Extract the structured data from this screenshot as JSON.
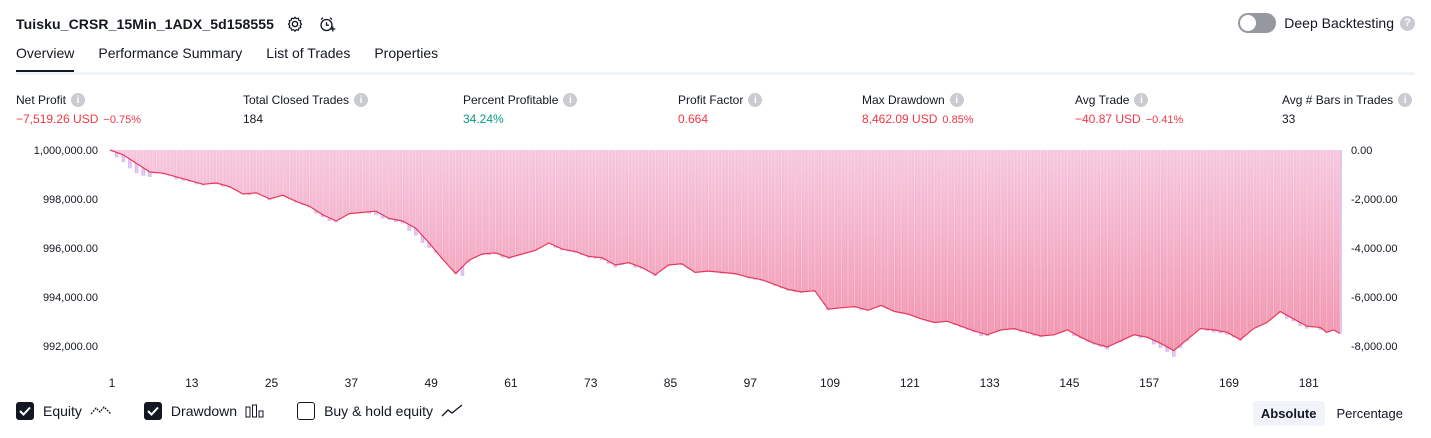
{
  "header": {
    "strategy_title": "Tuisku_CRSR_15Min_1ADX_5d158555",
    "settings_icon": "gear-icon",
    "alert_icon": "add-alert-icon",
    "deep_backtesting_label": "Deep Backtesting",
    "deep_backtesting_enabled": false
  },
  "tabs": [
    {
      "label": "Overview",
      "active": true
    },
    {
      "label": "Performance Summary",
      "active": false
    },
    {
      "label": "List of Trades",
      "active": false
    },
    {
      "label": "Properties",
      "active": false
    }
  ],
  "stats": {
    "net_profit": {
      "label": "Net Profit",
      "value": "−7,519.26 USD",
      "pct": "−0.75%"
    },
    "total_closed_trades": {
      "label": "Total Closed Trades",
      "value": "184"
    },
    "percent_profitable": {
      "label": "Percent Profitable",
      "value": "34.24%"
    },
    "profit_factor": {
      "label": "Profit Factor",
      "value": "0.664"
    },
    "max_drawdown": {
      "label": "Max Drawdown",
      "value": "8,462.09 USD",
      "pct": "0.85%"
    },
    "avg_trade": {
      "label": "Avg Trade",
      "value": "−40.87 USD",
      "pct": "−0.41%"
    },
    "avg_bars": {
      "label": "Avg # Bars in Trades",
      "value": "33"
    }
  },
  "colors": {
    "negative": "#f23645",
    "positive": "#089981",
    "equity_line": "#e8375a",
    "equity_fill_top": "#f7c6dc",
    "equity_fill_bottom": "#f28ca6",
    "drawdown_bar": "#d9b8f3"
  },
  "chart_data": {
    "type": "area",
    "left_axis": {
      "ticks": [
        "1,000,000.00",
        "998,000.00",
        "996,000.00",
        "994,000.00",
        "992,000.00"
      ],
      "ylim": [
        991500,
        1000000
      ]
    },
    "right_axis": {
      "ticks": [
        "0.00",
        "-2,000.00",
        "-4,000.00",
        "-6,000.00",
        "-8,000.00"
      ],
      "ylim": [
        -8500,
        0
      ]
    },
    "x_ticks": [
      "1",
      "13",
      "25",
      "37",
      "49",
      "61",
      "73",
      "85",
      "97",
      "109",
      "121",
      "133",
      "145",
      "157",
      "169",
      "181"
    ],
    "x_range": [
      1,
      186
    ],
    "equity_points": [
      [
        1,
        1000000
      ],
      [
        3,
        999800
      ],
      [
        5,
        999450
      ],
      [
        7,
        999100
      ],
      [
        9,
        999050
      ],
      [
        11,
        998900
      ],
      [
        13,
        998750
      ],
      [
        15,
        998600
      ],
      [
        17,
        998650
      ],
      [
        19,
        998500
      ],
      [
        21,
        998200
      ],
      [
        23,
        998250
      ],
      [
        25,
        998000
      ],
      [
        27,
        998150
      ],
      [
        29,
        997900
      ],
      [
        31,
        997700
      ],
      [
        33,
        997350
      ],
      [
        35,
        997100
      ],
      [
        37,
        997400
      ],
      [
        39,
        997450
      ],
      [
        41,
        997500
      ],
      [
        43,
        997200
      ],
      [
        45,
        997100
      ],
      [
        47,
        996800
      ],
      [
        49,
        996200
      ],
      [
        51,
        995550
      ],
      [
        53,
        994950
      ],
      [
        55,
        995500
      ],
      [
        57,
        995750
      ],
      [
        59,
        995800
      ],
      [
        61,
        995600
      ],
      [
        63,
        995750
      ],
      [
        65,
        995900
      ],
      [
        67,
        996200
      ],
      [
        69,
        995950
      ],
      [
        71,
        995850
      ],
      [
        73,
        995650
      ],
      [
        75,
        995600
      ],
      [
        77,
        995300
      ],
      [
        79,
        995400
      ],
      [
        81,
        995200
      ],
      [
        83,
        994900
      ],
      [
        85,
        995300
      ],
      [
        87,
        995350
      ],
      [
        89,
        995000
      ],
      [
        91,
        995050
      ],
      [
        93,
        995000
      ],
      [
        95,
        994950
      ],
      [
        97,
        994800
      ],
      [
        99,
        994700
      ],
      [
        101,
        994500
      ],
      [
        103,
        994300
      ],
      [
        105,
        994200
      ],
      [
        107,
        994250
      ],
      [
        109,
        993500
      ],
      [
        111,
        993550
      ],
      [
        113,
        993600
      ],
      [
        115,
        993450
      ],
      [
        117,
        993650
      ],
      [
        119,
        993400
      ],
      [
        121,
        993300
      ],
      [
        123,
        993100
      ],
      [
        125,
        992950
      ],
      [
        127,
        993000
      ],
      [
        129,
        992800
      ],
      [
        131,
        992600
      ],
      [
        133,
        992450
      ],
      [
        135,
        992650
      ],
      [
        137,
        992700
      ],
      [
        139,
        992550
      ],
      [
        141,
        992400
      ],
      [
        143,
        992450
      ],
      [
        145,
        992650
      ],
      [
        147,
        992350
      ],
      [
        149,
        992100
      ],
      [
        151,
        991950
      ],
      [
        153,
        992200
      ],
      [
        155,
        992450
      ],
      [
        157,
        992350
      ],
      [
        159,
        992100
      ],
      [
        161,
        991800
      ],
      [
        163,
        992250
      ],
      [
        165,
        992700
      ],
      [
        167,
        992650
      ],
      [
        169,
        992550
      ],
      [
        171,
        992250
      ],
      [
        173,
        992700
      ],
      [
        175,
        992950
      ],
      [
        177,
        993400
      ],
      [
        179,
        993100
      ],
      [
        181,
        992800
      ],
      [
        183,
        992750
      ],
      [
        184,
        992550
      ],
      [
        185,
        992650
      ],
      [
        186,
        992500
      ]
    ],
    "drawdown_peak_bars": [
      [
        1,
        0
      ],
      [
        2,
        -300
      ],
      [
        3,
        -500
      ],
      [
        4,
        -750
      ],
      [
        5,
        -950
      ],
      [
        6,
        -1050
      ],
      [
        7,
        -1100
      ],
      [
        8,
        -950
      ],
      [
        9,
        -1000
      ],
      [
        10,
        -1050
      ],
      [
        11,
        -1200
      ],
      [
        12,
        -1250
      ],
      [
        13,
        -1300
      ],
      [
        14,
        -1400
      ],
      [
        15,
        -1450
      ],
      [
        16,
        -1350
      ],
      [
        17,
        -1400
      ],
      [
        18,
        -1500
      ],
      [
        19,
        -1550
      ],
      [
        20,
        -1600
      ],
      [
        21,
        -1800
      ],
      [
        22,
        -1850
      ],
      [
        23,
        -1750
      ],
      [
        24,
        -1800
      ],
      [
        25,
        -2050
      ],
      [
        26,
        -1900
      ],
      [
        27,
        -1850
      ],
      [
        28,
        -2000
      ],
      [
        29,
        -2150
      ],
      [
        30,
        -2250
      ],
      [
        31,
        -2350
      ],
      [
        32,
        -2600
      ],
      [
        33,
        -2750
      ],
      [
        34,
        -2900
      ],
      [
        35,
        -2950
      ],
      [
        36,
        -2650
      ],
      [
        37,
        -2550
      ],
      [
        38,
        -2550
      ],
      [
        39,
        -2500
      ],
      [
        40,
        -2600
      ],
      [
        41,
        -2650
      ],
      [
        42,
        -2800
      ],
      [
        43,
        -2850
      ],
      [
        44,
        -2950
      ],
      [
        45,
        -3000
      ],
      [
        46,
        -3300
      ],
      [
        47,
        -3500
      ],
      [
        48,
        -3800
      ],
      [
        49,
        -4000
      ],
      [
        50,
        -4200
      ],
      [
        51,
        -4450
      ],
      [
        52,
        -4700
      ],
      [
        53,
        -5050
      ],
      [
        54,
        -5150
      ],
      [
        55,
        -4600
      ],
      [
        56,
        -4400
      ],
      [
        57,
        -4300
      ],
      [
        58,
        -4300
      ],
      [
        59,
        -4250
      ],
      [
        60,
        -4400
      ],
      [
        61,
        -4450
      ],
      [
        62,
        -4300
      ],
      [
        63,
        -4250
      ],
      [
        64,
        -4100
      ],
      [
        65,
        -4050
      ],
      [
        66,
        -3900
      ],
      [
        67,
        -3800
      ],
      [
        68,
        -4000
      ],
      [
        69,
        -4100
      ],
      [
        70,
        -4150
      ],
      [
        71,
        -4200
      ],
      [
        72,
        -4300
      ],
      [
        73,
        -4400
      ],
      [
        74,
        -4450
      ],
      [
        75,
        -4500
      ],
      [
        76,
        -4650
      ],
      [
        77,
        -4800
      ],
      [
        78,
        -4700
      ],
      [
        79,
        -4650
      ],
      [
        80,
        -4800
      ],
      [
        81,
        -4850
      ],
      [
        82,
        -4950
      ],
      [
        83,
        -5150
      ],
      [
        84,
        -4900
      ],
      [
        85,
        -4750
      ],
      [
        86,
        -4700
      ],
      [
        87,
        -4700
      ],
      [
        88,
        -4850
      ],
      [
        89,
        -5000
      ],
      [
        90,
        -4950
      ],
      [
        91,
        -4950
      ],
      [
        92,
        -5000
      ],
      [
        93,
        -5050
      ],
      [
        94,
        -5050
      ],
      [
        95,
        -5100
      ],
      [
        96,
        -5150
      ],
      [
        97,
        -5250
      ],
      [
        98,
        -5300
      ],
      [
        99,
        -5350
      ],
      [
        100,
        -5400
      ],
      [
        101,
        -5550
      ],
      [
        102,
        -5650
      ],
      [
        103,
        -5750
      ],
      [
        104,
        -5800
      ],
      [
        105,
        -5850
      ],
      [
        106,
        -5750
      ],
      [
        107,
        -5800
      ],
      [
        108,
        -6100
      ],
      [
        109,
        -6550
      ],
      [
        110,
        -6500
      ],
      [
        111,
        -6450
      ],
      [
        112,
        -6400
      ],
      [
        113,
        -6450
      ],
      [
        114,
        -6550
      ],
      [
        115,
        -6550
      ],
      [
        116,
        -6400
      ],
      [
        117,
        -6350
      ],
      [
        118,
        -6500
      ],
      [
        119,
        -6600
      ],
      [
        120,
        -6650
      ],
      [
        121,
        -6700
      ],
      [
        122,
        -6800
      ],
      [
        123,
        -6900
      ],
      [
        124,
        -7000
      ],
      [
        125,
        -7050
      ],
      [
        126,
        -7000
      ],
      [
        127,
        -7000
      ],
      [
        128,
        -7150
      ],
      [
        129,
        -7250
      ],
      [
        130,
        -7350
      ],
      [
        131,
        -7450
      ],
      [
        132,
        -7600
      ],
      [
        133,
        -7600
      ],
      [
        134,
        -7400
      ],
      [
        135,
        -7350
      ],
      [
        136,
        -7300
      ],
      [
        137,
        -7350
      ],
      [
        138,
        -7450
      ],
      [
        139,
        -7500
      ],
      [
        140,
        -7600
      ],
      [
        141,
        -7650
      ],
      [
        142,
        -7550
      ],
      [
        143,
        -7550
      ],
      [
        144,
        -7450
      ],
      [
        145,
        -7350
      ],
      [
        146,
        -7600
      ],
      [
        147,
        -7700
      ],
      [
        148,
        -7850
      ],
      [
        149,
        -7950
      ],
      [
        150,
        -8050
      ],
      [
        151,
        -8150
      ],
      [
        152,
        -7900
      ],
      [
        153,
        -7850
      ],
      [
        154,
        -7650
      ],
      [
        155,
        -7550
      ],
      [
        156,
        -7700
      ],
      [
        157,
        -7700
      ],
      [
        158,
        -7950
      ],
      [
        159,
        -8100
      ],
      [
        160,
        -8250
      ],
      [
        161,
        -8450
      ],
      [
        162,
        -8100
      ],
      [
        163,
        -7800
      ],
      [
        164,
        -7400
      ],
      [
        165,
        -7300
      ],
      [
        166,
        -7400
      ],
      [
        167,
        -7450
      ],
      [
        168,
        -7500
      ],
      [
        169,
        -7550
      ],
      [
        170,
        -7650
      ],
      [
        171,
        -7800
      ],
      [
        172,
        -7400
      ],
      [
        173,
        -7250
      ],
      [
        174,
        -7100
      ],
      [
        175,
        -6950
      ],
      [
        176,
        -6700
      ],
      [
        177,
        -6600
      ],
      [
        178,
        -6900
      ],
      [
        179,
        -7000
      ],
      [
        180,
        -7200
      ],
      [
        181,
        -7300
      ],
      [
        182,
        -7250
      ],
      [
        183,
        -7350
      ],
      [
        184,
        -7450
      ],
      [
        185,
        -7400
      ],
      [
        186,
        -7500
      ]
    ]
  },
  "legend": {
    "equity": {
      "label": "Equity",
      "checked": true,
      "icon": "equity-line-icon"
    },
    "drawdown": {
      "label": "Drawdown",
      "checked": true,
      "icon": "drawdown-bars-icon"
    },
    "buy_hold": {
      "label": "Buy & hold equity",
      "checked": false,
      "icon": "buy-hold-line-icon"
    }
  },
  "mode": {
    "absolute_label": "Absolute",
    "percentage_label": "Percentage",
    "active": "absolute"
  }
}
